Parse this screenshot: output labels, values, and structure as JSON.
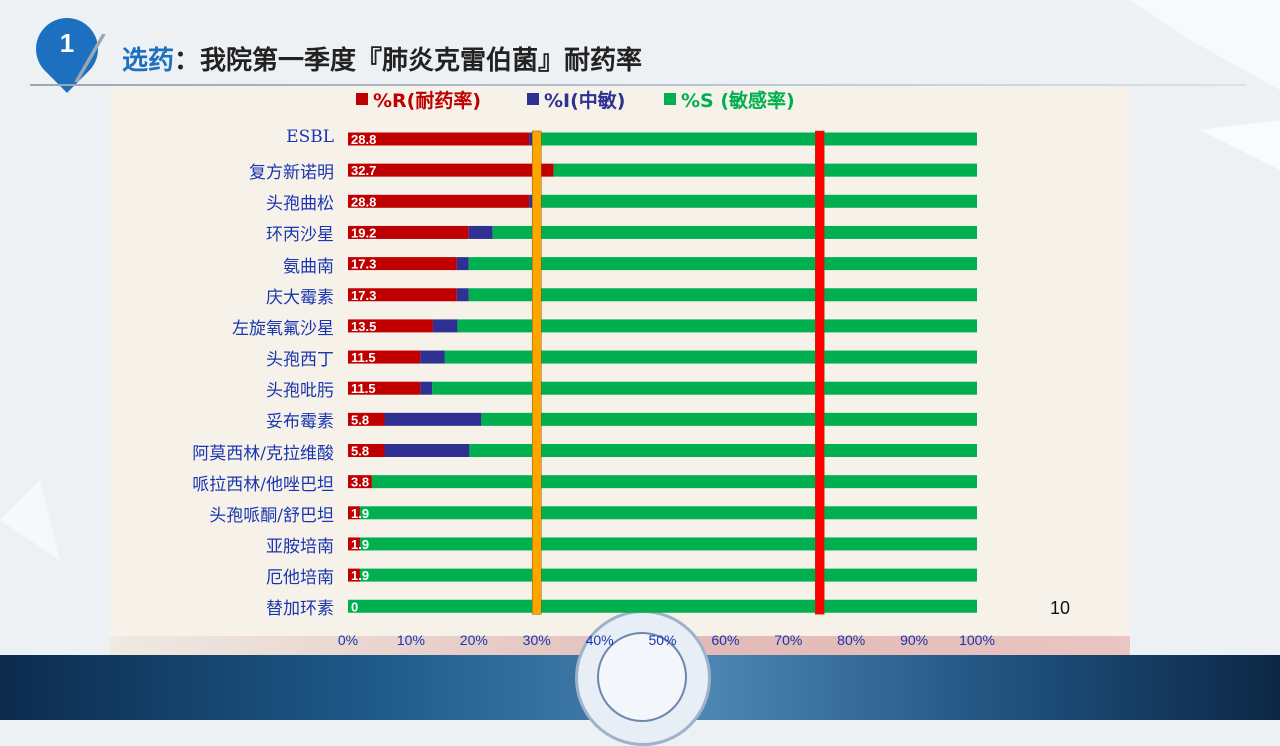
{
  "slide": {
    "number": "1",
    "title_accent": "选药",
    "title_rest": "：我院第一季度『肺炎克雷伯菌』耐药率",
    "page_number": "10"
  },
  "colors": {
    "resistant": "#c00000",
    "intermediate": "#2e3192",
    "sensitive": "#00b050",
    "line_30": "#ffa500",
    "line_75": "#ff0000"
  },
  "legend": {
    "r_label": "%R(耐药率)",
    "i_label": "%I(中敏)",
    "s_label": "%S (敏感率)"
  },
  "chart_data": {
    "type": "bar",
    "orientation": "horizontal",
    "stacked": true,
    "categories": [
      "ESBL",
      "复方新诺明",
      "头孢曲松",
      "环丙沙星",
      "氨曲南",
      "庆大霉素",
      "左旋氧氟沙星",
      "头孢西丁",
      "头孢吡肟",
      "妥布霉素",
      "阿莫西林/克拉维酸",
      "哌拉西林/他唑巴坦",
      "头孢哌酮/舒巴坦",
      "亚胺培南",
      "厄他培南",
      "替加环素"
    ],
    "series": [
      {
        "name": "%R(耐药率)",
        "values": [
          28.8,
          32.7,
          28.8,
          19.2,
          17.3,
          17.3,
          13.5,
          11.5,
          11.5,
          5.8,
          5.8,
          3.8,
          1.9,
          1.9,
          1.9,
          0
        ]
      },
      {
        "name": "%I(中敏)",
        "values": [
          0.6,
          0,
          0.6,
          3.8,
          1.9,
          1.9,
          3.9,
          3.9,
          1.9,
          15.4,
          13.5,
          0,
          0,
          0,
          0,
          0
        ]
      },
      {
        "name": "%S (敏感率)",
        "values": [
          70.6,
          67.3,
          70.6,
          77.0,
          80.8,
          80.8,
          82.6,
          84.6,
          86.6,
          78.8,
          80.7,
          96.2,
          98.1,
          98.1,
          98.1,
          100
        ]
      }
    ],
    "data_labels": [
      "28.8",
      "32.7",
      "28.8",
      "19.2",
      "17.3",
      "17.3",
      "13.5",
      "11.5",
      "11.5",
      "5.8",
      "5.8",
      "3.8",
      "1.9",
      "1.9",
      "1.9",
      "0"
    ],
    "xlim": [
      0,
      100
    ],
    "x_ticks": [
      "0%",
      "10%",
      "20%",
      "30%",
      "40%",
      "50%",
      "60%",
      "70%",
      "80%",
      "90%",
      "100%"
    ],
    "reference_lines": [
      30,
      75
    ]
  }
}
